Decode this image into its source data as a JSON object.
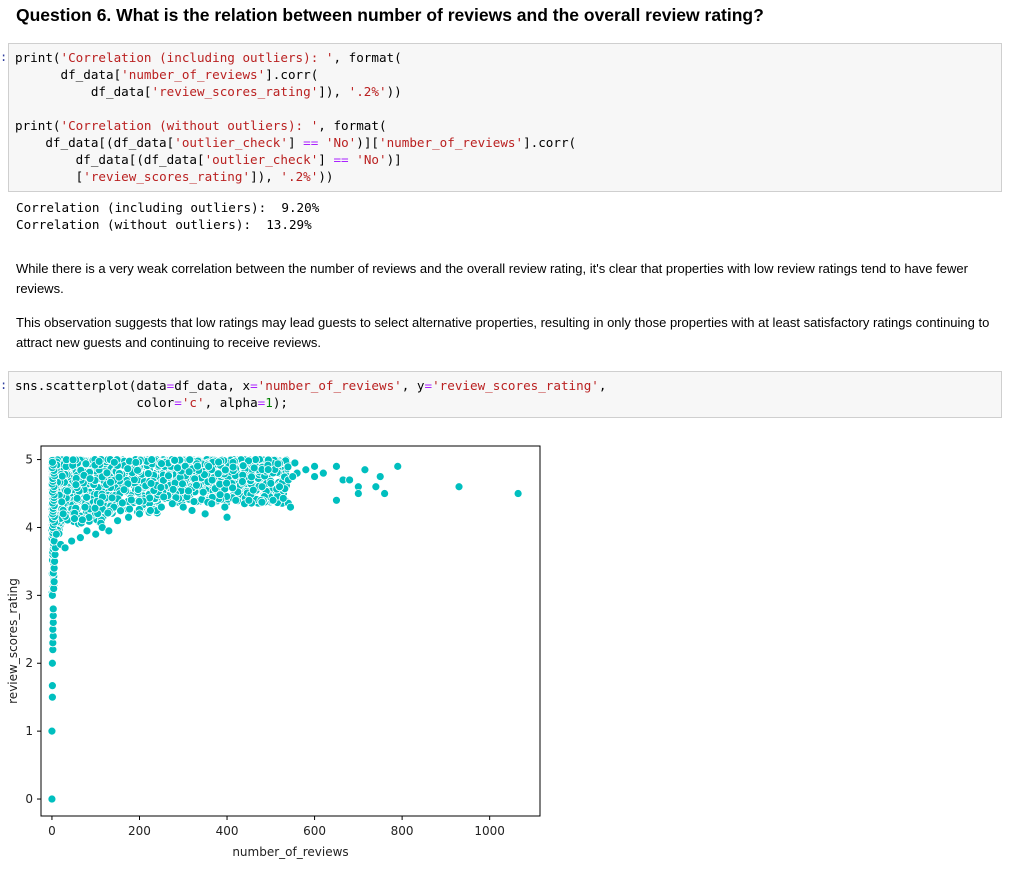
{
  "question_heading": "Question 6. What is the relation between number of reviews and the overall review rating?",
  "code_cell_1": {
    "lines": [
      [
        {
          "t": "print(",
          "c": ""
        },
        {
          "t": "'Correlation (including outliers): '",
          "c": "s"
        },
        {
          "t": ", format(",
          "c": ""
        }
      ],
      [
        {
          "t": "      df_data[",
          "c": ""
        },
        {
          "t": "'number_of_reviews'",
          "c": "s"
        },
        {
          "t": "].corr(",
          "c": ""
        }
      ],
      [
        {
          "t": "          df_data[",
          "c": ""
        },
        {
          "t": "'review_scores_rating'",
          "c": "s"
        },
        {
          "t": "]), ",
          "c": ""
        },
        {
          "t": "'.2%'",
          "c": "s"
        },
        {
          "t": "))",
          "c": ""
        }
      ],
      [
        {
          "t": "",
          "c": ""
        }
      ],
      [
        {
          "t": "print(",
          "c": ""
        },
        {
          "t": "'Correlation (without outliers): '",
          "c": "s"
        },
        {
          "t": ", format(",
          "c": ""
        }
      ],
      [
        {
          "t": "    df_data[(df_data[",
          "c": ""
        },
        {
          "t": "'outlier_check'",
          "c": "s"
        },
        {
          "t": "] ",
          "c": ""
        },
        {
          "t": "==",
          "c": "o"
        },
        {
          "t": " ",
          "c": ""
        },
        {
          "t": "'No'",
          "c": "s"
        },
        {
          "t": ")][",
          "c": ""
        },
        {
          "t": "'number_of_reviews'",
          "c": "s"
        },
        {
          "t": "].corr(",
          "c": ""
        }
      ],
      [
        {
          "t": "        df_data[(df_data[",
          "c": ""
        },
        {
          "t": "'outlier_check'",
          "c": "s"
        },
        {
          "t": "] ",
          "c": ""
        },
        {
          "t": "==",
          "c": "o"
        },
        {
          "t": " ",
          "c": ""
        },
        {
          "t": "'No'",
          "c": "s"
        },
        {
          "t": ")]",
          "c": ""
        }
      ],
      [
        {
          "t": "        [",
          "c": ""
        },
        {
          "t": "'review_scores_rating'",
          "c": "s"
        },
        {
          "t": "]), ",
          "c": ""
        },
        {
          "t": "'.2%'",
          "c": "s"
        },
        {
          "t": "))",
          "c": ""
        }
      ]
    ]
  },
  "output_1": [
    "Correlation (including outliers):  9.20%",
    "Correlation (without outliers):  13.29%"
  ],
  "paragraph_1": "While there is a very weak correlation between the number of reviews and the overall review rating, it's clear that properties with low review ratings tend to have fewer reviews.",
  "paragraph_2": "This observation suggests that low ratings may lead guests to select alternative properties, resulting in only those properties with at least satisfactory ratings continuing to attract new guests and continuing to receive reviews.",
  "code_cell_2": {
    "lines": [
      [
        {
          "t": "sns.scatterplot(data",
          "c": ""
        },
        {
          "t": "=",
          "c": "o"
        },
        {
          "t": "df_data, x",
          "c": ""
        },
        {
          "t": "=",
          "c": "o"
        },
        {
          "t": "'number_of_reviews'",
          "c": "s"
        },
        {
          "t": ", y",
          "c": ""
        },
        {
          "t": "=",
          "c": "o"
        },
        {
          "t": "'review_scores_rating'",
          "c": "s"
        },
        {
          "t": ",",
          "c": ""
        }
      ],
      [
        {
          "t": "                color",
          "c": ""
        },
        {
          "t": "=",
          "c": "o"
        },
        {
          "t": "'c'",
          "c": "s"
        },
        {
          "t": ", alpha",
          "c": ""
        },
        {
          "t": "=",
          "c": "o"
        },
        {
          "t": "1",
          "c": "n"
        },
        {
          "t": ");",
          "c": ""
        }
      ]
    ]
  },
  "colors": {
    "point": "#00bfbf",
    "point_edge": "#ffffff",
    "prompt": "#303f9f"
  },
  "chart_data": {
    "type": "scatter",
    "title": "",
    "xlabel": "number_of_reviews",
    "ylabel": "review_scores_rating",
    "xlim": [
      -25,
      1115
    ],
    "ylim": [
      -0.25,
      5.2
    ],
    "xticks": [
      0,
      200,
      400,
      600,
      800,
      1000
    ],
    "yticks": [
      0,
      1,
      2,
      3,
      4,
      5
    ],
    "grid": false,
    "series": [
      {
        "points": [
          [
            0,
            0
          ],
          [
            0,
            1
          ],
          [
            1,
            1.5
          ],
          [
            1,
            1.67
          ],
          [
            1,
            2
          ],
          [
            2,
            2.2
          ],
          [
            2,
            2.3
          ],
          [
            3,
            2.4
          ],
          [
            2,
            2.5
          ],
          [
            3,
            2.6
          ],
          [
            3,
            2.7
          ],
          [
            3,
            2.8
          ],
          [
            1,
            3
          ],
          [
            4,
            3.1
          ],
          [
            5,
            3.2
          ],
          [
            3,
            3.33
          ],
          [
            5,
            3.4
          ],
          [
            6,
            3.5
          ],
          [
            7,
            3.6
          ],
          [
            8,
            3.7
          ],
          [
            5,
            3.8
          ],
          [
            10,
            3.9
          ],
          [
            20,
            3.75
          ],
          [
            30,
            3.7
          ],
          [
            45,
            3.8
          ],
          [
            65,
            3.85
          ],
          [
            80,
            3.95
          ],
          [
            100,
            3.9
          ],
          [
            115,
            4.0
          ],
          [
            130,
            3.95
          ],
          [
            150,
            4.1
          ],
          [
            175,
            4.15
          ],
          [
            200,
            4.2
          ],
          [
            225,
            4.25
          ],
          [
            250,
            4.3
          ],
          [
            275,
            4.35
          ],
          [
            300,
            4.3
          ],
          [
            320,
            4.25
          ],
          [
            350,
            4.2
          ],
          [
            400,
            4.15
          ],
          [
            365,
            4.35
          ],
          [
            395,
            4.3
          ],
          [
            420,
            4.4
          ],
          [
            440,
            4.35
          ],
          [
            450,
            4.4
          ],
          [
            460,
            4.55
          ],
          [
            480,
            4.6
          ],
          [
            500,
            4.65
          ],
          [
            520,
            4.6
          ],
          [
            540,
            4.7
          ],
          [
            560,
            4.8
          ],
          [
            580,
            4.85
          ],
          [
            600,
            4.75
          ],
          [
            620,
            4.8
          ],
          [
            545,
            4.3
          ],
          [
            550,
            4.75
          ],
          [
            555,
            4.95
          ],
          [
            600,
            4.9
          ],
          [
            650,
            4.4
          ],
          [
            650,
            4.9
          ],
          [
            665,
            4.7
          ],
          [
            680,
            4.7
          ],
          [
            700,
            4.6
          ],
          [
            700,
            4.5
          ],
          [
            715,
            4.85
          ],
          [
            740,
            4.6
          ],
          [
            750,
            4.75
          ],
          [
            760,
            4.5
          ],
          [
            790,
            4.9
          ],
          [
            930,
            4.6
          ],
          [
            1065,
            4.5
          ]
        ],
        "dense_band": {
          "x_from": 0,
          "x_to": 540,
          "y_from": 4.15,
          "y_to": 5.0
        }
      }
    ]
  }
}
